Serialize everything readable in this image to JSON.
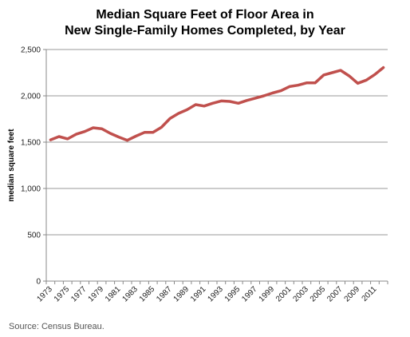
{
  "chart_data": {
    "type": "line",
    "title_line1": "Median Square Feet of Floor Area in",
    "title_line2": "New Single-Family Homes Completed, by Year",
    "xlabel": "",
    "ylabel": "median square feet",
    "ylim": [
      0,
      2500
    ],
    "y_ticks": [
      0,
      500,
      1000,
      1500,
      2000,
      2500
    ],
    "y_tick_labels": [
      "0",
      "500",
      "1,000",
      "1,500",
      "2,000",
      "2,500"
    ],
    "x_tick_labels": [
      "1973",
      "1975",
      "1977",
      "1979",
      "1981",
      "1983",
      "1985",
      "1987",
      "1989",
      "1991",
      "1993",
      "1995",
      "1997",
      "1999",
      "2001",
      "2003",
      "2005",
      "2007",
      "2009",
      "2011"
    ],
    "grid": true,
    "legend": "none",
    "series": [
      {
        "color": "#c0504d",
        "x": [
          1973,
          1974,
          1975,
          1976,
          1977,
          1978,
          1979,
          1980,
          1981,
          1982,
          1983,
          1984,
          1985,
          1986,
          1987,
          1988,
          1989,
          1990,
          1991,
          1992,
          1993,
          1994,
          1995,
          1996,
          1997,
          1998,
          1999,
          2000,
          2001,
          2002,
          2003,
          2004,
          2005,
          2006,
          2007,
          2008,
          2009,
          2010,
          2011,
          2012
        ],
        "values": [
          1525,
          1560,
          1535,
          1585,
          1615,
          1655,
          1645,
          1595,
          1555,
          1520,
          1565,
          1605,
          1605,
          1660,
          1755,
          1810,
          1850,
          1905,
          1890,
          1920,
          1945,
          1940,
          1920,
          1950,
          1975,
          2000,
          2030,
          2055,
          2100,
          2115,
          2140,
          2140,
          2225,
          2250,
          2275,
          2215,
          2135,
          2170,
          2230,
          2305
        ]
      }
    ],
    "source": "Source: Census Bureau."
  }
}
